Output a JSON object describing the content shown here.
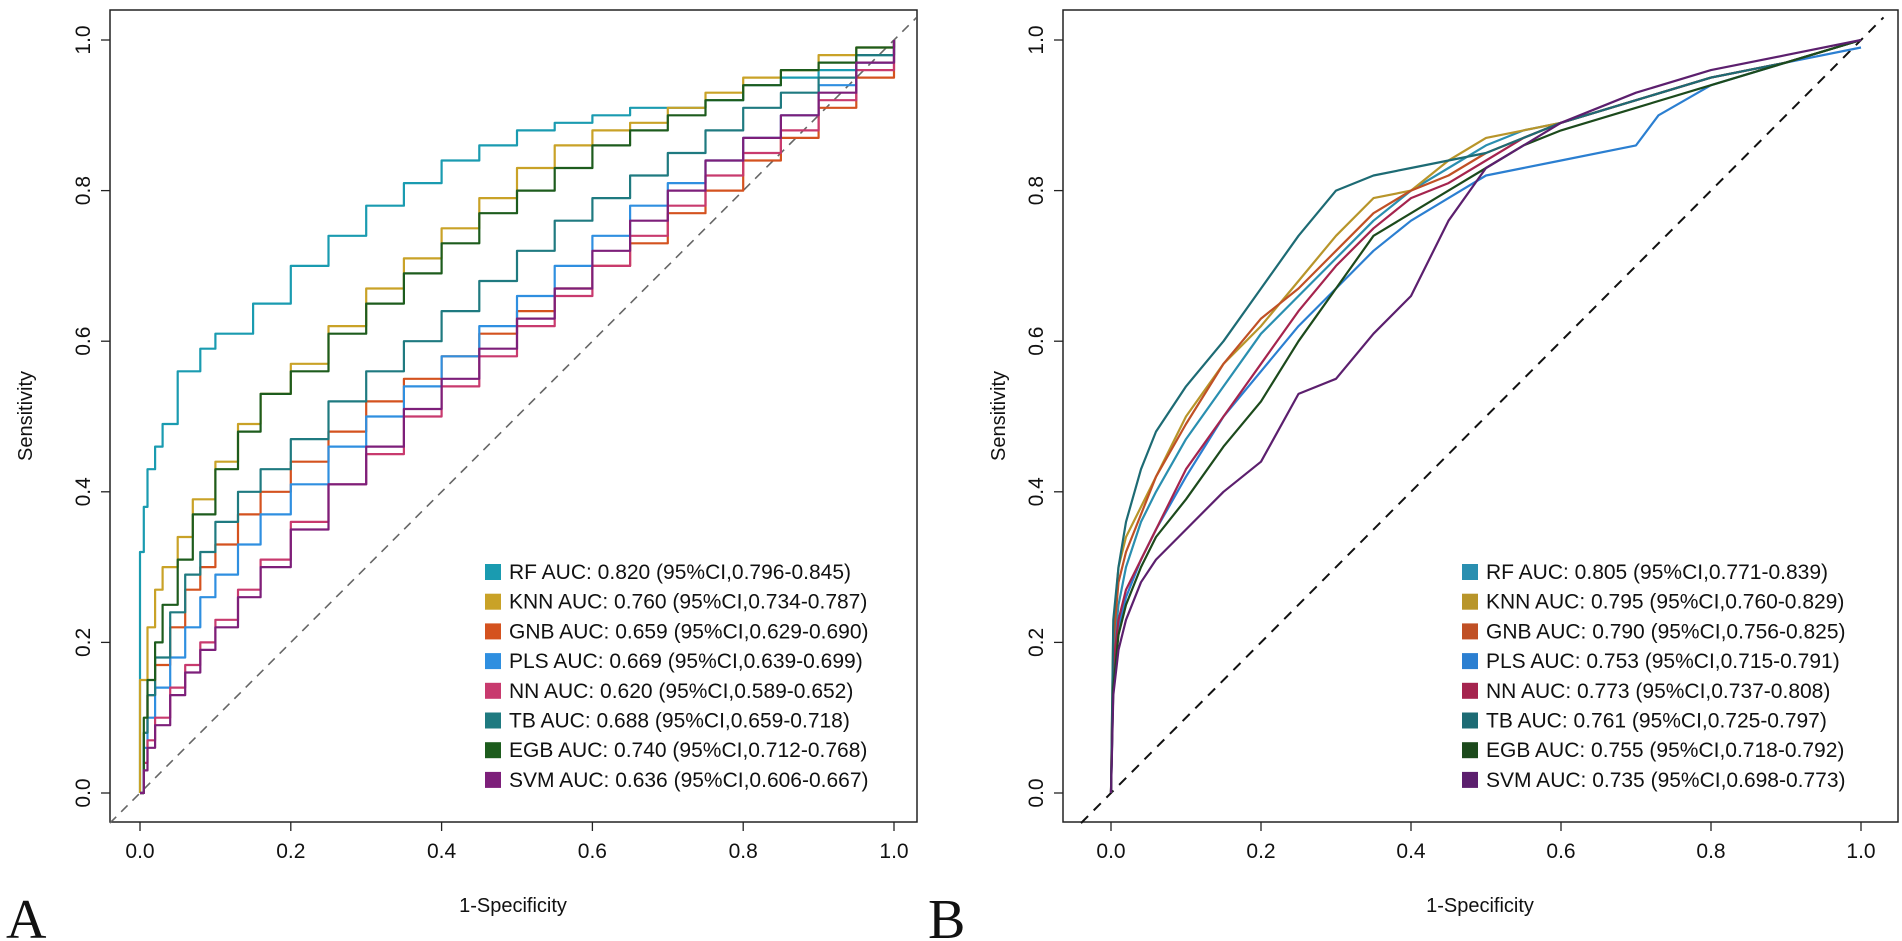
{
  "chart_data": [
    {
      "type": "line",
      "panel_label": "A",
      "xlabel": "1-Specificity",
      "ylabel": "Sensitivity",
      "xlim": [
        0,
        1
      ],
      "ylim": [
        0,
        1
      ],
      "x_ticks": [
        "0.0",
        "0.2",
        "0.4",
        "0.6",
        "0.8",
        "1.0"
      ],
      "y_ticks": [
        "0.0",
        "0.2",
        "0.4",
        "0.6",
        "0.8",
        "1.0"
      ],
      "reference_line": true,
      "legend_position": "bottom-right",
      "series": [
        {
          "name": "RF",
          "legend": "RF AUC: 0.820 (95%CI,0.796-0.845)",
          "color": "#1a9bb0",
          "x": [
            0,
            0,
            0.005,
            0.01,
            0.02,
            0.03,
            0.05,
            0.08,
            0.1,
            0.15,
            0.2,
            0.25,
            0.3,
            0.35,
            0.4,
            0.45,
            0.5,
            0.55,
            0.6,
            0.65,
            0.7,
            0.75,
            0.8,
            0.85,
            0.9,
            0.95,
            1.0
          ],
          "y": [
            0,
            0.32,
            0.38,
            0.43,
            0.46,
            0.49,
            0.56,
            0.59,
            0.61,
            0.65,
            0.7,
            0.74,
            0.78,
            0.81,
            0.84,
            0.86,
            0.88,
            0.89,
            0.9,
            0.91,
            0.91,
            0.92,
            0.94,
            0.95,
            0.96,
            0.98,
            1.0
          ]
        },
        {
          "name": "KNN",
          "legend": "KNN AUC: 0.760 (95%CI,0.734-0.787)",
          "color": "#c9a227",
          "x": [
            0,
            0,
            0.01,
            0.02,
            0.03,
            0.05,
            0.07,
            0.1,
            0.13,
            0.16,
            0.2,
            0.25,
            0.3,
            0.35,
            0.4,
            0.45,
            0.5,
            0.55,
            0.6,
            0.65,
            0.7,
            0.75,
            0.8,
            0.85,
            0.9,
            0.95,
            1.0
          ],
          "y": [
            0,
            0.15,
            0.22,
            0.27,
            0.3,
            0.34,
            0.39,
            0.44,
            0.49,
            0.53,
            0.57,
            0.62,
            0.67,
            0.71,
            0.75,
            0.79,
            0.83,
            0.86,
            0.88,
            0.89,
            0.91,
            0.93,
            0.95,
            0.96,
            0.98,
            0.99,
            1.0
          ]
        },
        {
          "name": "GNB",
          "legend": "GNB AUC: 0.659 (95%CI,0.629-0.690)",
          "color": "#d4521f",
          "x": [
            0,
            0.005,
            0.01,
            0.02,
            0.04,
            0.06,
            0.08,
            0.1,
            0.13,
            0.16,
            0.2,
            0.25,
            0.3,
            0.35,
            0.4,
            0.45,
            0.5,
            0.55,
            0.6,
            0.65,
            0.7,
            0.75,
            0.8,
            0.85,
            0.9,
            0.95,
            1.0
          ],
          "y": [
            0,
            0.08,
            0.13,
            0.17,
            0.22,
            0.27,
            0.3,
            0.33,
            0.37,
            0.4,
            0.44,
            0.48,
            0.52,
            0.55,
            0.58,
            0.61,
            0.64,
            0.67,
            0.7,
            0.73,
            0.77,
            0.8,
            0.84,
            0.87,
            0.91,
            0.95,
            1.0
          ]
        },
        {
          "name": "PLS",
          "legend": "PLS AUC: 0.669 (95%CI,0.639-0.699)",
          "color": "#2f8fe0",
          "x": [
            0,
            0.005,
            0.01,
            0.02,
            0.04,
            0.06,
            0.08,
            0.1,
            0.13,
            0.16,
            0.2,
            0.25,
            0.3,
            0.35,
            0.4,
            0.45,
            0.5,
            0.55,
            0.6,
            0.65,
            0.7,
            0.75,
            0.8,
            0.85,
            0.9,
            0.95,
            1.0
          ],
          "y": [
            0,
            0.06,
            0.1,
            0.14,
            0.18,
            0.22,
            0.26,
            0.29,
            0.33,
            0.37,
            0.41,
            0.46,
            0.5,
            0.54,
            0.58,
            0.62,
            0.66,
            0.7,
            0.74,
            0.78,
            0.81,
            0.84,
            0.87,
            0.9,
            0.94,
            0.97,
            1.0
          ]
        },
        {
          "name": "NN",
          "legend": "NN AUC: 0.620 (95%CI,0.589-0.652)",
          "color": "#c83a6e",
          "x": [
            0,
            0.005,
            0.01,
            0.02,
            0.04,
            0.06,
            0.08,
            0.1,
            0.13,
            0.16,
            0.2,
            0.25,
            0.3,
            0.35,
            0.4,
            0.45,
            0.5,
            0.55,
            0.6,
            0.65,
            0.7,
            0.75,
            0.8,
            0.85,
            0.9,
            0.95,
            1.0
          ],
          "y": [
            0,
            0.04,
            0.07,
            0.1,
            0.14,
            0.17,
            0.2,
            0.23,
            0.27,
            0.31,
            0.36,
            0.41,
            0.45,
            0.5,
            0.54,
            0.58,
            0.62,
            0.66,
            0.7,
            0.74,
            0.78,
            0.82,
            0.85,
            0.88,
            0.92,
            0.96,
            1.0
          ]
        },
        {
          "name": "TB",
          "legend": "TB AUC: 0.688 (95%CI,0.659-0.718)",
          "color": "#1f7a80",
          "x": [
            0,
            0.005,
            0.01,
            0.02,
            0.04,
            0.06,
            0.08,
            0.1,
            0.13,
            0.16,
            0.2,
            0.25,
            0.3,
            0.35,
            0.4,
            0.45,
            0.5,
            0.55,
            0.6,
            0.65,
            0.7,
            0.75,
            0.8,
            0.85,
            0.9,
            0.95,
            1.0
          ],
          "y": [
            0,
            0.08,
            0.13,
            0.18,
            0.24,
            0.29,
            0.32,
            0.36,
            0.4,
            0.43,
            0.47,
            0.52,
            0.56,
            0.6,
            0.64,
            0.68,
            0.72,
            0.76,
            0.79,
            0.82,
            0.85,
            0.88,
            0.91,
            0.93,
            0.95,
            0.98,
            1.0
          ]
        },
        {
          "name": "EGB",
          "legend": "EGB AUC: 0.740 (95%CI,0.712-0.768)",
          "color": "#1d5c1d",
          "x": [
            0,
            0.005,
            0.01,
            0.02,
            0.03,
            0.05,
            0.07,
            0.1,
            0.13,
            0.16,
            0.2,
            0.25,
            0.3,
            0.35,
            0.4,
            0.45,
            0.5,
            0.55,
            0.6,
            0.65,
            0.7,
            0.75,
            0.8,
            0.85,
            0.9,
            0.95,
            1.0
          ],
          "y": [
            0,
            0.1,
            0.15,
            0.2,
            0.25,
            0.31,
            0.37,
            0.43,
            0.48,
            0.53,
            0.56,
            0.61,
            0.65,
            0.69,
            0.73,
            0.77,
            0.8,
            0.83,
            0.86,
            0.88,
            0.9,
            0.92,
            0.94,
            0.96,
            0.97,
            0.99,
            1.0
          ]
        },
        {
          "name": "SVM",
          "legend": "SVM AUC: 0.636 (95%CI,0.606-0.667)",
          "color": "#7d1f7a",
          "x": [
            0,
            0.005,
            0.01,
            0.02,
            0.04,
            0.06,
            0.08,
            0.1,
            0.13,
            0.16,
            0.2,
            0.25,
            0.3,
            0.35,
            0.4,
            0.45,
            0.5,
            0.55,
            0.6,
            0.65,
            0.7,
            0.75,
            0.8,
            0.85,
            0.9,
            0.95,
            1.0
          ],
          "y": [
            0,
            0.03,
            0.06,
            0.09,
            0.13,
            0.16,
            0.19,
            0.22,
            0.26,
            0.3,
            0.35,
            0.41,
            0.46,
            0.51,
            0.55,
            0.59,
            0.63,
            0.67,
            0.72,
            0.76,
            0.8,
            0.84,
            0.87,
            0.9,
            0.93,
            0.97,
            1.0
          ]
        }
      ]
    },
    {
      "type": "line",
      "panel_label": "B",
      "xlabel": "1-Specificity",
      "ylabel": "Sensitivity",
      "xlim": [
        0,
        1
      ],
      "ylim": [
        0,
        1
      ],
      "x_ticks": [
        "0.0",
        "0.2",
        "0.4",
        "0.6",
        "0.8",
        "1.0"
      ],
      "y_ticks": [
        "0.0",
        "0.2",
        "0.4",
        "0.6",
        "0.8",
        "1.0"
      ],
      "reference_line": true,
      "legend_position": "bottom-right",
      "series": [
        {
          "name": "RF",
          "legend": "RF AUC: 0.805 (95%CI,0.771-0.839)",
          "color": "#2a8fb0",
          "x": [
            0,
            0.003,
            0.01,
            0.02,
            0.04,
            0.06,
            0.1,
            0.15,
            0.2,
            0.25,
            0.3,
            0.35,
            0.4,
            0.45,
            0.5,
            0.55,
            0.6,
            0.7,
            0.8,
            0.9,
            1.0
          ],
          "y": [
            0,
            0.18,
            0.25,
            0.3,
            0.36,
            0.4,
            0.47,
            0.54,
            0.61,
            0.66,
            0.71,
            0.76,
            0.8,
            0.83,
            0.86,
            0.88,
            0.89,
            0.92,
            0.95,
            0.97,
            1.0
          ]
        },
        {
          "name": "KNN",
          "legend": "KNN AUC: 0.795 (95%CI,0.760-0.829)",
          "color": "#b8952a",
          "x": [
            0,
            0.003,
            0.01,
            0.02,
            0.04,
            0.06,
            0.1,
            0.15,
            0.2,
            0.25,
            0.3,
            0.35,
            0.4,
            0.45,
            0.5,
            0.55,
            0.6,
            0.7,
            0.8,
            0.9,
            1.0
          ],
          "y": [
            0,
            0.22,
            0.3,
            0.34,
            0.38,
            0.42,
            0.5,
            0.57,
            0.62,
            0.68,
            0.74,
            0.79,
            0.8,
            0.84,
            0.87,
            0.88,
            0.89,
            0.92,
            0.95,
            0.97,
            1.0
          ]
        },
        {
          "name": "GNB",
          "legend": "GNB AUC: 0.790 (95%CI,0.756-0.825)",
          "color": "#c05025",
          "x": [
            0,
            0.003,
            0.01,
            0.02,
            0.04,
            0.06,
            0.1,
            0.15,
            0.2,
            0.25,
            0.3,
            0.35,
            0.4,
            0.45,
            0.5,
            0.55,
            0.6,
            0.7,
            0.8,
            0.9,
            1.0
          ],
          "y": [
            0,
            0.2,
            0.28,
            0.32,
            0.37,
            0.42,
            0.49,
            0.57,
            0.63,
            0.67,
            0.72,
            0.77,
            0.8,
            0.82,
            0.85,
            0.87,
            0.89,
            0.92,
            0.95,
            0.97,
            1.0
          ]
        },
        {
          "name": "PLS",
          "legend": "PLS AUC: 0.753 (95%CI,0.715-0.791)",
          "color": "#2b7fd1",
          "x": [
            0,
            0.003,
            0.01,
            0.02,
            0.04,
            0.06,
            0.1,
            0.15,
            0.2,
            0.25,
            0.3,
            0.35,
            0.4,
            0.45,
            0.5,
            0.55,
            0.6,
            0.7,
            0.73,
            0.8,
            0.9,
            1.0
          ],
          "y": [
            0,
            0.15,
            0.22,
            0.26,
            0.31,
            0.35,
            0.42,
            0.5,
            0.56,
            0.62,
            0.67,
            0.72,
            0.76,
            0.79,
            0.82,
            0.83,
            0.84,
            0.86,
            0.9,
            0.94,
            0.97,
            0.99
          ]
        },
        {
          "name": "NN",
          "legend": "NN AUC: 0.773 (95%CI,0.737-0.808)",
          "color": "#a5244e",
          "x": [
            0,
            0.003,
            0.01,
            0.02,
            0.04,
            0.06,
            0.1,
            0.15,
            0.2,
            0.25,
            0.3,
            0.35,
            0.4,
            0.45,
            0.5,
            0.55,
            0.6,
            0.7,
            0.8,
            0.9,
            1.0
          ],
          "y": [
            0,
            0.17,
            0.23,
            0.27,
            0.31,
            0.35,
            0.43,
            0.5,
            0.57,
            0.64,
            0.7,
            0.75,
            0.79,
            0.81,
            0.84,
            0.87,
            0.89,
            0.92,
            0.95,
            0.97,
            1.0
          ]
        },
        {
          "name": "TB",
          "legend": "TB AUC: 0.761 (95%CI,0.725-0.797)",
          "color": "#1d6b74",
          "x": [
            0,
            0.003,
            0.01,
            0.02,
            0.04,
            0.06,
            0.1,
            0.15,
            0.2,
            0.25,
            0.3,
            0.35,
            0.4,
            0.45,
            0.5,
            0.55,
            0.6,
            0.7,
            0.8,
            0.9,
            1.0
          ],
          "y": [
            0,
            0.23,
            0.3,
            0.36,
            0.43,
            0.48,
            0.54,
            0.6,
            0.67,
            0.74,
            0.8,
            0.82,
            0.83,
            0.84,
            0.85,
            0.87,
            0.89,
            0.92,
            0.95,
            0.97,
            1.0
          ]
        },
        {
          "name": "EGB",
          "legend": "EGB AUC: 0.755 (95%CI,0.718-0.792)",
          "color": "#1c4a1c",
          "x": [
            0,
            0.003,
            0.01,
            0.02,
            0.04,
            0.06,
            0.1,
            0.15,
            0.2,
            0.25,
            0.3,
            0.35,
            0.4,
            0.45,
            0.5,
            0.55,
            0.6,
            0.7,
            0.8,
            0.9,
            1.0
          ],
          "y": [
            0,
            0.14,
            0.21,
            0.25,
            0.3,
            0.34,
            0.39,
            0.46,
            0.52,
            0.6,
            0.67,
            0.74,
            0.77,
            0.8,
            0.83,
            0.86,
            0.88,
            0.91,
            0.94,
            0.97,
            1.0
          ]
        },
        {
          "name": "SVM",
          "legend": "SVM AUC: 0.735 (95%CI,0.698-0.773)",
          "color": "#5c1f6e",
          "x": [
            0,
            0.003,
            0.01,
            0.02,
            0.04,
            0.06,
            0.1,
            0.15,
            0.2,
            0.25,
            0.3,
            0.35,
            0.4,
            0.45,
            0.5,
            0.55,
            0.6,
            0.7,
            0.8,
            0.9,
            1.0
          ],
          "y": [
            0,
            0.13,
            0.19,
            0.23,
            0.28,
            0.31,
            0.35,
            0.4,
            0.44,
            0.53,
            0.55,
            0.61,
            0.66,
            0.76,
            0.83,
            0.86,
            0.89,
            0.93,
            0.96,
            0.98,
            1.0
          ]
        }
      ]
    }
  ]
}
